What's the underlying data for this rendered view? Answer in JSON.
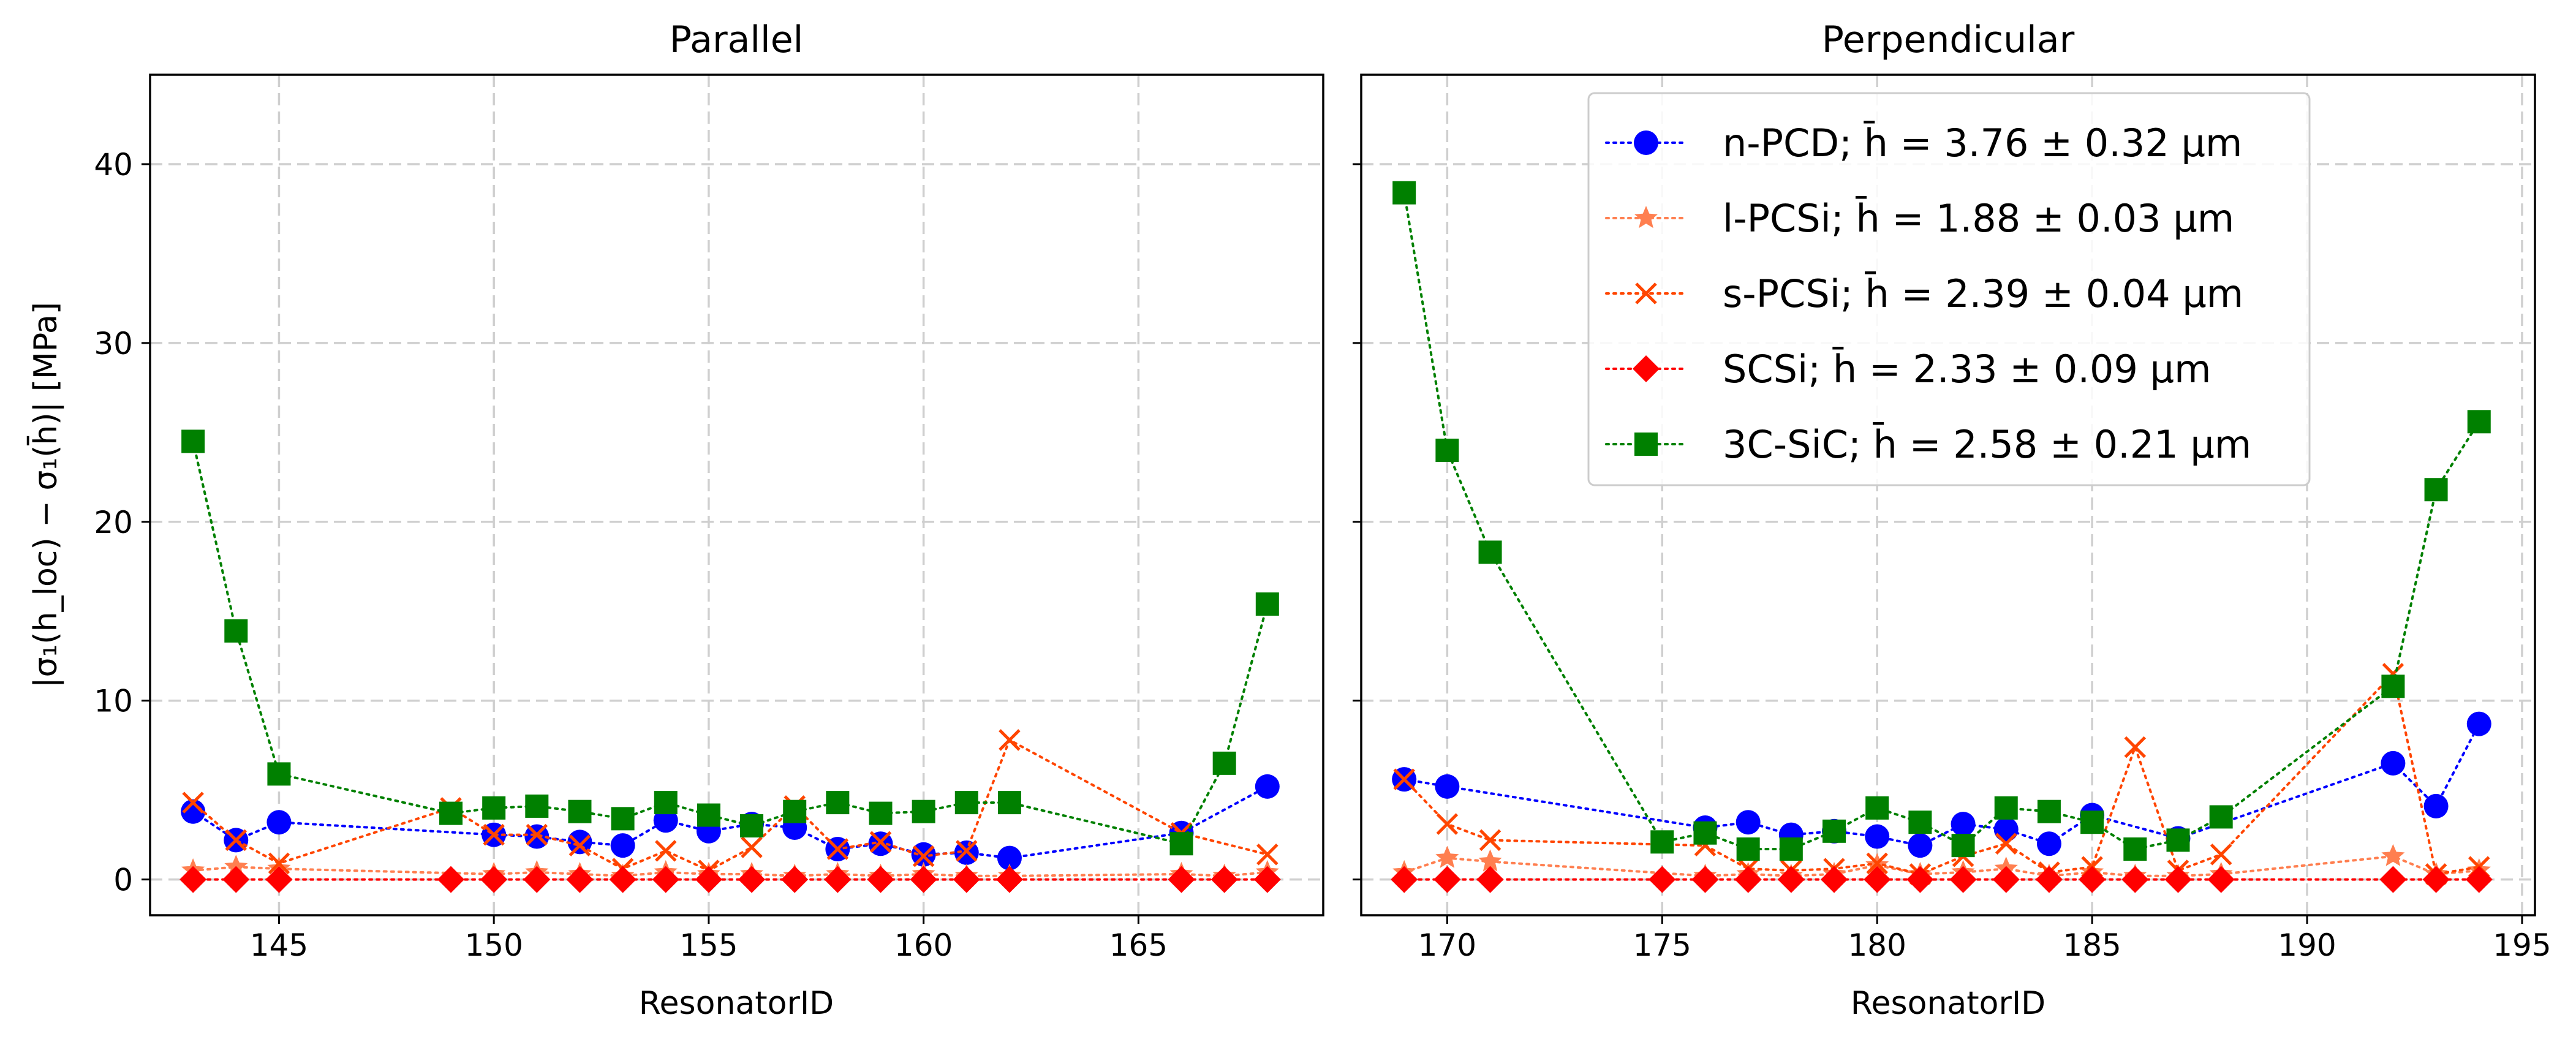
{
  "figure": {
    "ylabel": "|σ₁(h_loc) − σ₁(h̄)| [MPa]",
    "ylim": [
      -2,
      45
    ],
    "yticks": [
      0,
      10,
      20,
      30,
      40
    ],
    "grid": true,
    "legend_location": "upper right of right panel"
  },
  "legend": {
    "entries": [
      {
        "label": "n-PCD; h̄ = 3.76 ± 0.32 μm",
        "marker": "circle",
        "color": "#0000ff"
      },
      {
        "label": "l-PCSi; h̄ = 1.88 ± 0.03 μm",
        "marker": "star",
        "color": "#ff7f50"
      },
      {
        "label": "s-PCSi; h̄ = 2.39 ± 0.04 μm",
        "marker": "x",
        "color": "#ff4500"
      },
      {
        "label": "SCSi; h̄ = 2.33 ± 0.09 μm",
        "marker": "diamond",
        "color": "#ff0000"
      },
      {
        "label": "3C-SiC; h̄ = 2.58 ± 0.21 μm",
        "marker": "square",
        "color": "#008000"
      }
    ]
  },
  "chart_data": [
    {
      "type": "line",
      "title": "Parallel",
      "xlabel": "ResonatorID",
      "ylabel": "|σ₁(h_loc) − σ₁(h̄)| [MPa]",
      "xlim": [
        142,
        169.3
      ],
      "ylim": [
        -2,
        45
      ],
      "xticks": [
        145,
        150,
        155,
        160,
        165
      ],
      "series": [
        {
          "name": "n-PCD",
          "color": "#0000ff",
          "marker": "circle",
          "points": [
            [
              143,
              3.8
            ],
            [
              144,
              2.2
            ],
            [
              145,
              3.2
            ],
            [
              150,
              2.5
            ],
            [
              151,
              2.4
            ],
            [
              152,
              2.1
            ],
            [
              153,
              1.9
            ],
            [
              154,
              3.3
            ],
            [
              155,
              2.7
            ],
            [
              156,
              3.1
            ],
            [
              157,
              2.9
            ],
            [
              158,
              1.7
            ],
            [
              159,
              2.0
            ],
            [
              160,
              1.4
            ],
            [
              161,
              1.5
            ],
            [
              162,
              1.2
            ],
            [
              166,
              2.6
            ],
            [
              168,
              5.2
            ]
          ]
        },
        {
          "name": "l-PCSi",
          "color": "#ff7f50",
          "marker": "star",
          "points": [
            [
              143,
              0.5
            ],
            [
              144,
              0.7
            ],
            [
              145,
              0.6
            ],
            [
              150,
              0.3
            ],
            [
              151,
              0.4
            ],
            [
              152,
              0.3
            ],
            [
              153,
              0.2
            ],
            [
              154,
              0.4
            ],
            [
              155,
              0.3
            ],
            [
              156,
              0.3
            ],
            [
              157,
              0.2
            ],
            [
              158,
              0.3
            ],
            [
              159,
              0.2
            ],
            [
              160,
              0.3
            ],
            [
              161,
              0.2
            ],
            [
              162,
              0.2
            ],
            [
              166,
              0.3
            ],
            [
              167,
              0.2
            ],
            [
              168,
              0.4
            ]
          ]
        },
        {
          "name": "s-PCSi",
          "color": "#ff4500",
          "marker": "x",
          "points": [
            [
              143,
              4.3
            ],
            [
              144,
              2.2
            ],
            [
              145,
              0.9
            ],
            [
              149,
              4.0
            ],
            [
              150,
              2.5
            ],
            [
              151,
              2.5
            ],
            [
              152,
              1.9
            ],
            [
              153,
              0.6
            ],
            [
              154,
              1.6
            ],
            [
              155,
              0.5
            ],
            [
              156,
              1.8
            ],
            [
              157,
              4.1
            ],
            [
              158,
              1.7
            ],
            [
              159,
              2.1
            ],
            [
              160,
              1.3
            ],
            [
              161,
              1.6
            ],
            [
              162,
              7.8
            ],
            [
              166,
              2.6
            ],
            [
              168,
              1.4
            ]
          ]
        },
        {
          "name": "SCSi",
          "color": "#ff0000",
          "marker": "diamond",
          "points": [
            [
              143,
              0
            ],
            [
              144,
              0
            ],
            [
              145,
              0
            ],
            [
              149,
              0
            ],
            [
              150,
              0
            ],
            [
              151,
              0
            ],
            [
              152,
              0
            ],
            [
              153,
              0
            ],
            [
              154,
              0
            ],
            [
              155,
              0
            ],
            [
              156,
              0
            ],
            [
              157,
              0
            ],
            [
              158,
              0
            ],
            [
              159,
              0
            ],
            [
              160,
              0
            ],
            [
              161,
              0
            ],
            [
              162,
              0
            ],
            [
              166,
              0
            ],
            [
              167,
              0
            ],
            [
              168,
              0
            ]
          ]
        },
        {
          "name": "3C-SiC",
          "color": "#008000",
          "marker": "square",
          "points": [
            [
              143,
              24.5
            ],
            [
              144,
              13.9
            ],
            [
              145,
              5.9
            ],
            [
              149,
              3.7
            ],
            [
              150,
              4.0
            ],
            [
              151,
              4.1
            ],
            [
              152,
              3.8
            ],
            [
              153,
              3.4
            ],
            [
              154,
              4.3
            ],
            [
              155,
              3.6
            ],
            [
              156,
              3.0
            ],
            [
              157,
              3.8
            ],
            [
              158,
              4.3
            ],
            [
              159,
              3.7
            ],
            [
              160,
              3.8
            ],
            [
              161,
              4.3
            ],
            [
              162,
              4.3
            ],
            [
              166,
              2.0
            ],
            [
              167,
              6.5
            ],
            [
              168,
              15.4
            ]
          ]
        }
      ]
    },
    {
      "type": "line",
      "title": "Perpendicular",
      "xlabel": "ResonatorID",
      "ylabel": "",
      "xlim": [
        168,
        195.3
      ],
      "ylim": [
        -2,
        45
      ],
      "xticks": [
        170,
        175,
        180,
        185,
        190,
        195
      ],
      "series": [
        {
          "name": "n-PCD",
          "color": "#0000ff",
          "marker": "circle",
          "points": [
            [
              169,
              5.6
            ],
            [
              170,
              5.2
            ],
            [
              176,
              2.9
            ],
            [
              177,
              3.2
            ],
            [
              178,
              2.5
            ],
            [
              179,
              2.7
            ],
            [
              180,
              2.4
            ],
            [
              181,
              1.9
            ],
            [
              182,
              3.1
            ],
            [
              183,
              2.8
            ],
            [
              184,
              2.0
            ],
            [
              185,
              3.6
            ],
            [
              187,
              2.3
            ],
            [
              192,
              6.5
            ],
            [
              193,
              4.1
            ],
            [
              194,
              8.7
            ]
          ]
        },
        {
          "name": "l-PCSi",
          "color": "#ff7f50",
          "marker": "star",
          "points": [
            [
              169,
              0.4
            ],
            [
              170,
              1.2
            ],
            [
              171,
              1.0
            ],
            [
              176,
              0.2
            ],
            [
              177,
              0.3
            ],
            [
              178,
              0.2
            ],
            [
              179,
              0.3
            ],
            [
              180,
              0.8
            ],
            [
              181,
              0.3
            ],
            [
              182,
              0.4
            ],
            [
              183,
              0.6
            ],
            [
              184,
              0.2
            ],
            [
              185,
              0.4
            ],
            [
              186,
              0.2
            ],
            [
              187,
              0.2
            ],
            [
              188,
              0.3
            ],
            [
              192,
              1.3
            ],
            [
              193,
              0.3
            ],
            [
              194,
              0.5
            ]
          ]
        },
        {
          "name": "s-PCSi",
          "color": "#ff4500",
          "marker": "x",
          "points": [
            [
              169,
              5.6
            ],
            [
              170,
              3.1
            ],
            [
              171,
              2.2
            ],
            [
              176,
              1.9
            ],
            [
              177,
              0.6
            ],
            [
              178,
              0.5
            ],
            [
              179,
              0.6
            ],
            [
              180,
              0.9
            ],
            [
              181,
              0.3
            ],
            [
              182,
              1.3
            ],
            [
              183,
              2.0
            ],
            [
              184,
              0.4
            ],
            [
              185,
              0.7
            ],
            [
              186,
              7.4
            ],
            [
              187,
              0.5
            ],
            [
              188,
              1.4
            ],
            [
              192,
              11.5
            ],
            [
              193,
              0.3
            ],
            [
              194,
              0.7
            ]
          ]
        },
        {
          "name": "SCSi",
          "color": "#ff0000",
          "marker": "diamond",
          "points": [
            [
              169,
              0
            ],
            [
              170,
              0
            ],
            [
              171,
              0
            ],
            [
              175,
              0
            ],
            [
              176,
              0
            ],
            [
              177,
              0
            ],
            [
              178,
              0
            ],
            [
              179,
              0
            ],
            [
              180,
              0
            ],
            [
              181,
              0
            ],
            [
              182,
              0
            ],
            [
              183,
              0
            ],
            [
              184,
              0
            ],
            [
              185,
              0
            ],
            [
              186,
              0
            ],
            [
              187,
              0
            ],
            [
              188,
              0
            ],
            [
              192,
              0
            ],
            [
              193,
              0
            ],
            [
              194,
              0
            ]
          ]
        },
        {
          "name": "3C-SiC",
          "color": "#008000",
          "marker": "square",
          "points": [
            [
              169,
              38.4
            ],
            [
              170,
              24.0
            ],
            [
              171,
              18.3
            ],
            [
              175,
              2.1
            ],
            [
              176,
              2.6
            ],
            [
              177,
              1.7
            ],
            [
              178,
              1.7
            ],
            [
              179,
              2.7
            ],
            [
              180,
              4.0
            ],
            [
              181,
              3.2
            ],
            [
              182,
              1.9
            ],
            [
              183,
              4.0
            ],
            [
              184,
              3.8
            ],
            [
              185,
              3.2
            ],
            [
              186,
              1.7
            ],
            [
              187,
              2.2
            ],
            [
              188,
              3.5
            ],
            [
              192,
              10.8
            ],
            [
              193,
              21.8
            ],
            [
              194,
              25.6
            ]
          ]
        }
      ]
    }
  ]
}
